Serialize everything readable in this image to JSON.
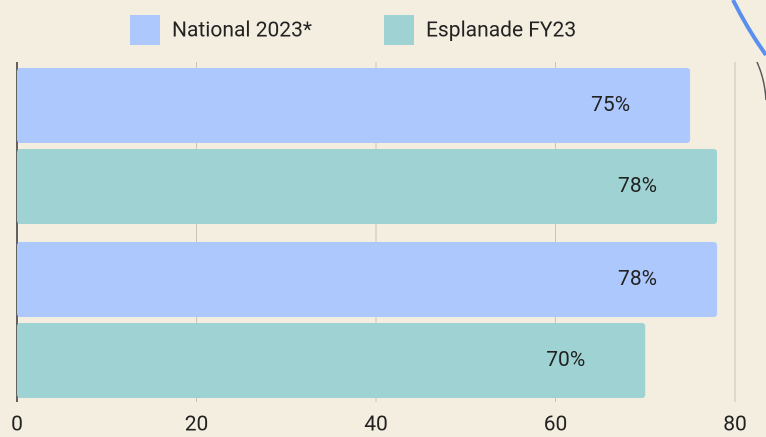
{
  "chart_data": {
    "type": "hbar",
    "categories": [
      null,
      null
    ],
    "series": [
      {
        "name": "National 2023*",
        "color": "#adc8fc",
        "values": [
          75,
          78
        ],
        "value_labels": [
          "75%",
          "78%"
        ]
      },
      {
        "name": "Esplanade FY23",
        "color": "#9fd3d3",
        "values": [
          78,
          70
        ],
        "value_labels": [
          "78%",
          "70%"
        ]
      }
    ],
    "xlim": [
      0,
      80
    ],
    "xticks": [
      0,
      20,
      40,
      60,
      80
    ],
    "grid": true,
    "legend": "top"
  }
}
